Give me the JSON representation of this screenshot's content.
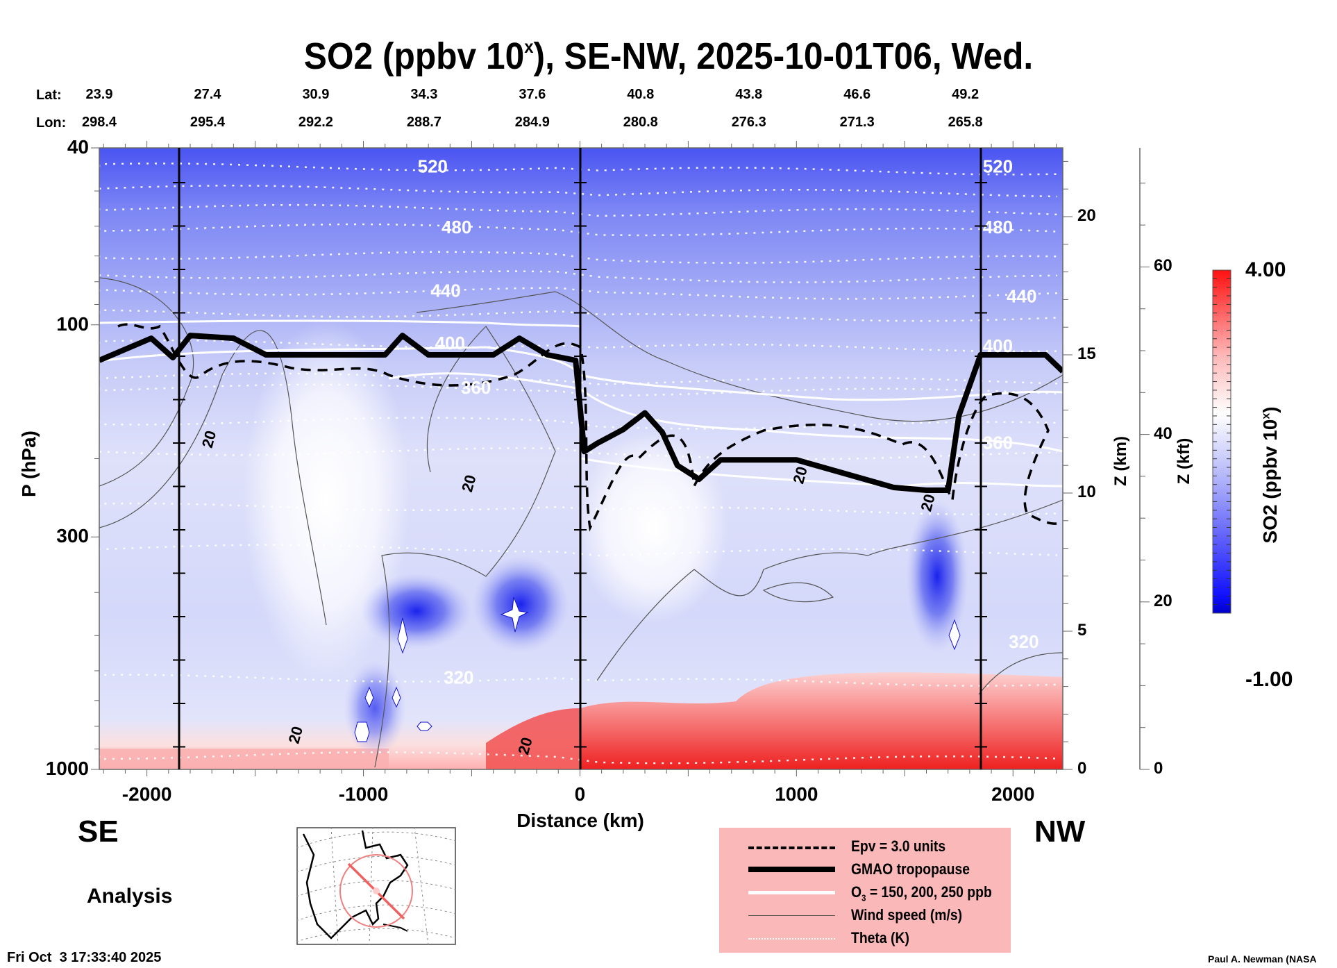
{
  "chart_data": {
    "type": "heatmap",
    "title": "SO2 (ppbv 10",
    "title_superscript": "x",
    "title_suffix": "), SE-NW, 2025-10-01T06, Wed.",
    "xlabel": "Distance (km)",
    "ylabel": "P (hPa)",
    "xlim": [
      -2220,
      2230
    ],
    "ylim_hpa": [
      1000,
      40
    ],
    "x_ticks": [
      -2000,
      -1000,
      0,
      1000,
      2000
    ],
    "x_tick_labels": [
      "-2000",
      "-1000",
      "0",
      "1000",
      "2000"
    ],
    "y_ticks_hpa": [
      40,
      100,
      300,
      1000
    ],
    "y_tick_labels": [
      "40",
      "100",
      "300",
      "1000"
    ],
    "z_km_axis": {
      "label": "Z (km)",
      "ticks": [
        0,
        5,
        10,
        15,
        20
      ],
      "tick_labels": [
        "0",
        "5",
        "10",
        "15",
        "20"
      ]
    },
    "z_kft_axis": {
      "label": "Z (kft)",
      "ticks": [
        0,
        20,
        40,
        60
      ],
      "tick_labels": [
        "0",
        "20",
        "40",
        "60"
      ]
    },
    "vertical_reference_lines_km": [
      -1850,
      0,
      1850
    ],
    "lat_lon_header": {
      "lat_label": "Lat:",
      "lon_label": "Lon:",
      "distance_km": [
        -2220,
        -1720,
        -1220,
        -720,
        -220,
        280,
        780,
        1280,
        1780
      ],
      "lat": [
        "23.9",
        "27.4",
        "30.9",
        "34.3",
        "37.6",
        "40.8",
        "43.8",
        "46.6",
        "49.2"
      ],
      "lon": [
        "298.4",
        "295.4",
        "292.2",
        "288.7",
        "284.9",
        "280.8",
        "276.3",
        "271.3",
        "265.8"
      ]
    },
    "colorbar": {
      "label": "SO2 (ppbv 10",
      "label_superscript": "x",
      "label_suffix": ")",
      "min": -1.0,
      "max": 4.0,
      "min_label": "-1.00",
      "max_label": "4.00",
      "levels": 40,
      "colors": {
        "low": "#0000c8",
        "mid": "#ffffff",
        "high": "#ff0000"
      }
    },
    "theta_contours_K": [
      {
        "label": "520",
        "z_km": 21.8,
        "label_x_km": -680
      },
      {
        "label": "480",
        "z_km": 19.6,
        "label_x_km": -570
      },
      {
        "label": "440",
        "z_km": 17.3,
        "label_x_km": -620
      },
      {
        "label": "400",
        "z_km": 15.4,
        "label_x_km": -600
      },
      {
        "label": "360",
        "z_km": 13.8,
        "label_x_km": -480
      },
      {
        "label": "320",
        "z_km": 3.3,
        "label_x_km": -560
      }
    ],
    "theta_right_labels": [
      {
        "label": "520",
        "z_km": 21.8,
        "x_km": 1930
      },
      {
        "label": "480",
        "z_km": 19.6,
        "x_km": 1930
      },
      {
        "label": "440",
        "z_km": 17.1,
        "x_km": 2040
      },
      {
        "label": "400",
        "z_km": 15.3,
        "x_km": 1930
      },
      {
        "label": "360",
        "z_km": 11.8,
        "x_km": 1930
      },
      {
        "label": "320",
        "z_km": 4.6,
        "x_km": 2050
      }
    ],
    "wind_contour_labels": [
      {
        "label": "20",
        "x_km": -1690,
        "z_km": 11.9
      },
      {
        "label": "20",
        "x_km": -490,
        "z_km": 10.3
      },
      {
        "label": "20",
        "x_km": -1290,
        "z_km": 1.2
      },
      {
        "label": "20",
        "x_km": -230,
        "z_km": 0.8
      },
      {
        "label": "20",
        "x_km": 1040,
        "z_km": 10.6
      },
      {
        "label": "20",
        "x_km": 1630,
        "z_km": 9.6
      }
    ],
    "tropopause_km_profile": {
      "x_km": [
        -2220,
        -1980,
        -1880,
        -1800,
        -1600,
        -1450,
        -1200,
        -900,
        -820,
        -700,
        -400,
        -280,
        -150,
        -20,
        20,
        80,
        200,
        300,
        380,
        450,
        550,
        650,
        800,
        1000,
        1450,
        1600,
        1700,
        1750,
        1850,
        2150,
        2230
      ],
      "z_km": [
        14.8,
        15.6,
        14.9,
        15.7,
        15.6,
        15.0,
        15.0,
        15.0,
        15.7,
        15.0,
        15.0,
        15.6,
        15.0,
        14.8,
        11.5,
        11.8,
        12.3,
        12.9,
        12.2,
        11.0,
        10.5,
        11.2,
        11.2,
        11.2,
        10.2,
        10.1,
        10.1,
        12.8,
        15.0,
        15.0,
        14.4
      ]
    },
    "so2_features": [
      {
        "type": "max_blue",
        "x_km": -830,
        "z_km": 5.0
      },
      {
        "type": "max_blue",
        "x_km": -290,
        "z_km": 5.6
      },
      {
        "type": "max_blue",
        "x_km": 1750,
        "z_km": 4.9
      },
      {
        "type": "surface_red",
        "x_range_km": [
          0,
          2230
        ],
        "z_range_km": [
          0,
          3.0
        ]
      },
      {
        "type": "surface_red",
        "x_range_km": [
          -2220,
          -1400
        ],
        "z_range_km": [
          0,
          0.5
        ]
      }
    ]
  },
  "labels": {
    "se": "SE",
    "nw": "NW",
    "analysis": "Analysis",
    "timestamp": "Fri Oct  3 17:33:40 2025",
    "credit": "Paul A. Newman (NASA"
  },
  "legend": {
    "items": [
      {
        "label": "Epv = 3.0 units",
        "style": "dashed"
      },
      {
        "label": "GMAO tropopause",
        "style": "thick"
      },
      {
        "label_pre": "O",
        "label_sub": "3",
        "label_post": " = 150, 200, 250 ppb",
        "style": "white"
      },
      {
        "label": "Wind speed (m/s)",
        "style": "thin"
      },
      {
        "label": "Theta (K)",
        "style": "dotted"
      }
    ]
  },
  "map_inset": {
    "track_color": "#f08080",
    "description": "North America with SE-NW transect over the eastern US"
  }
}
